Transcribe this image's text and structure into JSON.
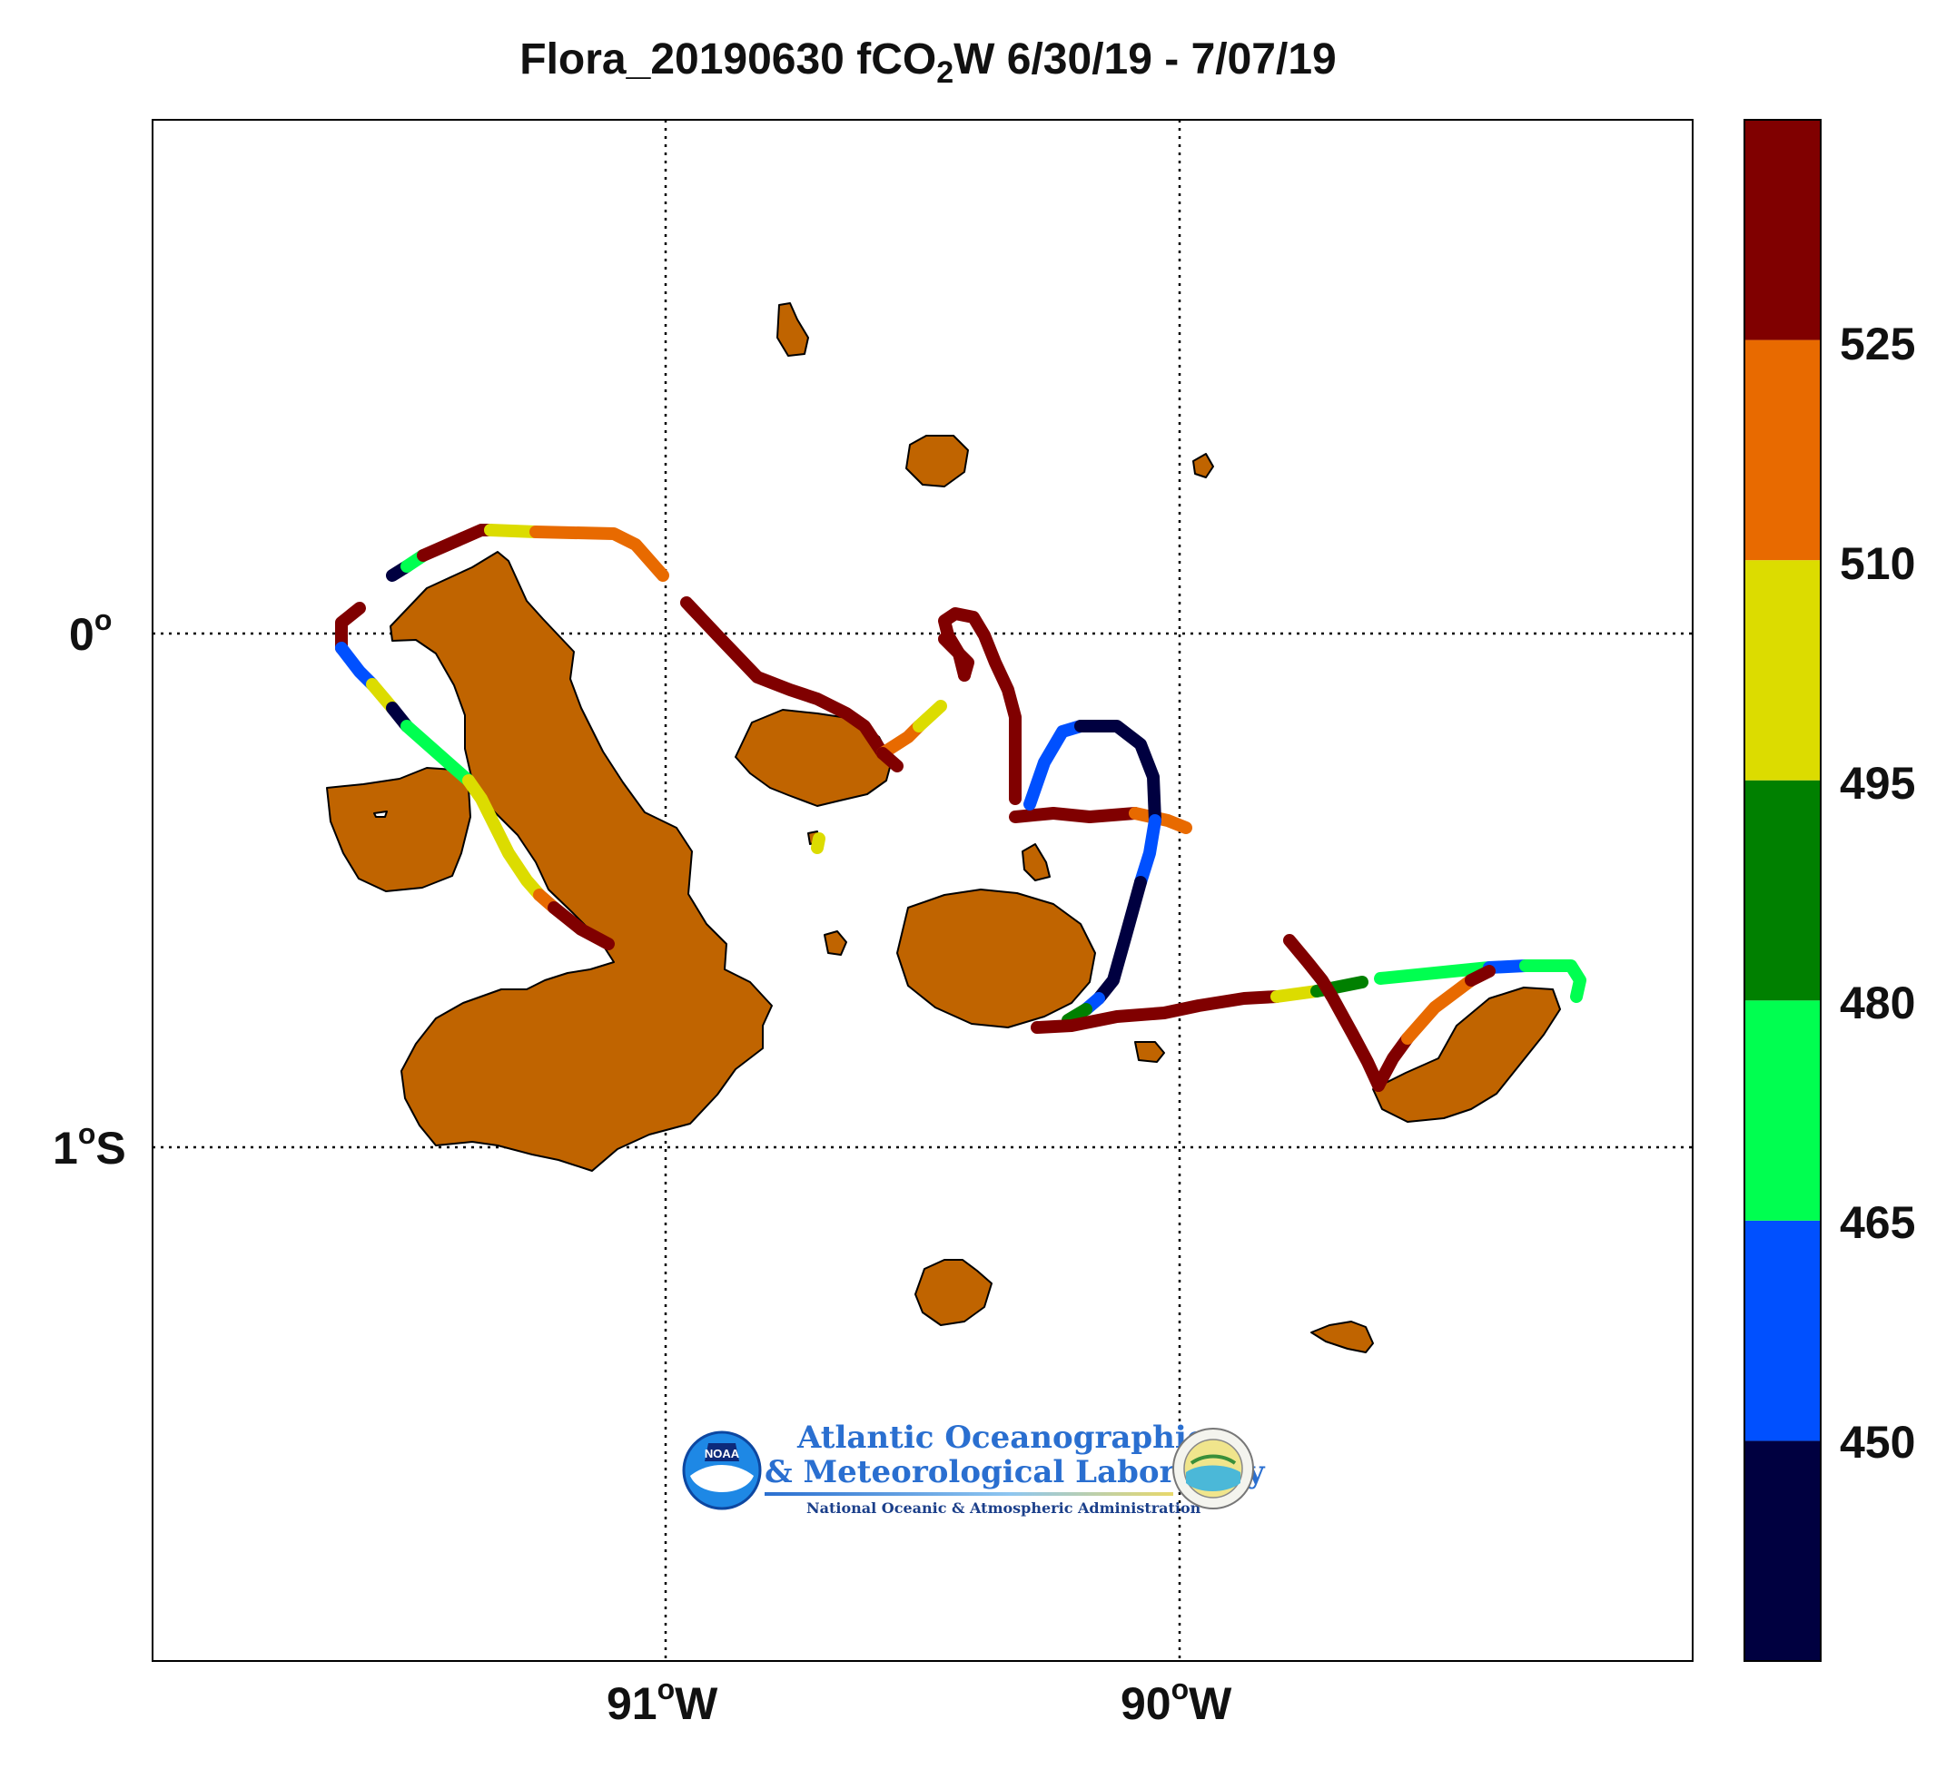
{
  "title": {
    "main": "Flora_20190630 fCO",
    "sub": "2",
    "rest": "W 6/30/19 - 7/07/19"
  },
  "axes": {
    "lon_labels": [
      {
        "deg": "91",
        "sup": "o",
        "hem": "W"
      },
      {
        "deg": "90",
        "sup": "o",
        "hem": "W"
      }
    ],
    "lat_labels": [
      {
        "deg": "0",
        "sup": "o",
        "hem": ""
      },
      {
        "deg": "1",
        "sup": "o",
        "hem": "S"
      }
    ]
  },
  "colorbar": {
    "levels": [
      "450",
      "465",
      "480",
      "495",
      "510",
      "525"
    ],
    "colors": [
      "#000040",
      "#0050ff",
      "#00ff50",
      "#008000",
      "#dcdc00",
      "#e86a00",
      "#800000"
    ]
  },
  "logo": {
    "line1": "Atlantic Oceanographic",
    "line2": "& Meteorological Laboratory",
    "line3": "National Oceanic & Atmospheric Administration",
    "badge": "NOAA"
  },
  "colors": {
    "land": "#c06400",
    "coast": "#000000"
  }
}
